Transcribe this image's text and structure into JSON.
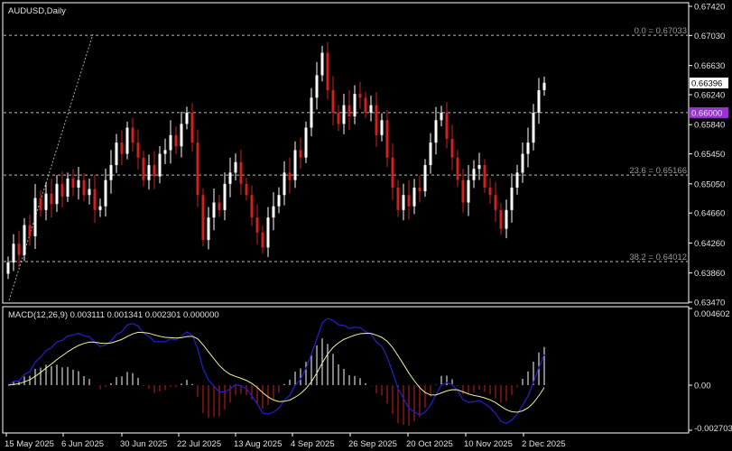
{
  "chart_data": {
    "type": "candlestick",
    "title": "AUDUSD,Daily",
    "symbol": "AUDUSD",
    "timeframe": "Daily",
    "price_axis": {
      "ylim": [
        0.6347,
        0.6742
      ],
      "ticks": [
        "0.67420",
        "0.67030",
        "0.66630",
        "0.66240",
        "0.65840",
        "0.65450",
        "0.65050",
        "0.64660",
        "0.64260",
        "0.63860",
        "0.63470"
      ]
    },
    "current_price": {
      "value": "0.66396",
      "color": "#ffffff"
    },
    "level_line": {
      "value": "0.66000",
      "color": "#9933cc"
    },
    "fibonacci": [
      {
        "label": "0.0 = 0.67033",
        "value": 0.67033
      },
      {
        "label": "23.6 = 0.65166",
        "value": 0.65166
      },
      {
        "label": "38.2 = 0.64012",
        "value": 0.64012
      }
    ],
    "x_ticks": [
      "15 May 2025",
      "6 Jun 2025",
      "30 Jun 2025",
      "22 Jul 2025",
      "13 Aug 2025",
      "4 Sep 2025",
      "26 Sep 2025",
      "20 Oct 2025",
      "10 Nov 2025",
      "2 Dec 2025"
    ],
    "closes": [
      0.64,
      0.6425,
      0.641,
      0.645,
      0.6435,
      0.6486,
      0.647,
      0.6492,
      0.6478,
      0.6505,
      0.6488,
      0.6512,
      0.65,
      0.651,
      0.649,
      0.6498,
      0.647,
      0.6475,
      0.651,
      0.653,
      0.656,
      0.6545,
      0.658,
      0.656,
      0.654,
      0.651,
      0.653,
      0.6515,
      0.6545,
      0.655,
      0.657,
      0.6555,
      0.6585,
      0.66,
      0.656,
      0.649,
      0.643,
      0.646,
      0.648,
      0.647,
      0.6505,
      0.652,
      0.6534,
      0.6505,
      0.649,
      0.646,
      0.644,
      0.642,
      0.646,
      0.6475,
      0.649,
      0.652,
      0.651,
      0.655,
      0.654,
      0.658,
      0.662,
      0.665,
      0.668,
      0.663,
      0.66,
      0.6585,
      0.661,
      0.6595,
      0.6625,
      0.662,
      0.66,
      0.661,
      0.657,
      0.659,
      0.654,
      0.65,
      0.647,
      0.649,
      0.6475,
      0.65,
      0.6495,
      0.653,
      0.656,
      0.659,
      0.66,
      0.6565,
      0.654,
      0.651,
      0.648,
      0.651,
      0.6525,
      0.653,
      0.65,
      0.649,
      0.647,
      0.6445,
      0.647,
      0.65,
      0.652,
      0.6545,
      0.656,
      0.66,
      0.663,
      0.664
    ],
    "colors": {
      "bull": "#ffffff",
      "bear": "#d02020",
      "macd_line": "#2020c0",
      "signal_line": "#f0f0a0",
      "hist_pos": "#ffffff",
      "hist_neg": "#d02020"
    },
    "macd": {
      "label": "MACD(12,26,9) 0.003111 0.001341 0.002301 0.000000",
      "ylim": [
        -0.002703,
        0.004602
      ],
      "ticks": [
        "0.004602",
        "0.00",
        "-0.002703"
      ]
    }
  }
}
